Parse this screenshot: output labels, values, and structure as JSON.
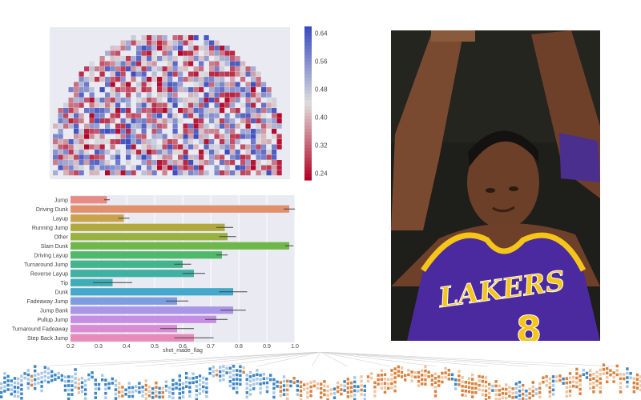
{
  "chart_data": [
    {
      "type": "heatmap",
      "title": "",
      "colorbar": {
        "ticks": [
          "0.64",
          "0.56",
          "0.48",
          "0.40",
          "0.32",
          "0.24"
        ],
        "vmin": 0.22,
        "vmax": 0.66,
        "cmap": "coolwarm",
        "colors": {
          "low": "#b40426",
          "mid": "#dddddd",
          "high": "#3b4cc0"
        }
      },
      "grid": false,
      "background": "#eaeaf2"
    },
    {
      "type": "bar",
      "orientation": "horizontal",
      "categories": [
        "Jump",
        "Driving Dunk",
        "Layup",
        "Running Jump",
        "Other",
        "Slam Dunk",
        "Driving Layup",
        "Turnaround Jump",
        "Reverse Layup",
        "Tip",
        "Dunk",
        "Fadeaway Jump",
        "Jump Bank",
        "Pullup Jump",
        "Turnaround Fadeaway",
        "Step Back Jump"
      ],
      "values": [
        0.33,
        0.98,
        0.39,
        0.75,
        0.76,
        0.98,
        0.74,
        0.6,
        0.64,
        0.35,
        0.78,
        0.58,
        0.78,
        0.72,
        0.58,
        0.64
      ],
      "errors": [
        0.01,
        0.02,
        0.02,
        0.03,
        0.03,
        0.015,
        0.02,
        0.03,
        0.04,
        0.07,
        0.05,
        0.04,
        0.045,
        0.04,
        0.06,
        0.07
      ],
      "colors": [
        "#e88b84",
        "#e0906a",
        "#c9a24c",
        "#b0aa3e",
        "#98b13f",
        "#6fb74a",
        "#4fb86a",
        "#43b48c",
        "#3fb0a2",
        "#3fadb6",
        "#44a8cc",
        "#7e9de0",
        "#a996e6",
        "#c58ee4",
        "#d98bd4",
        "#e88bb8"
      ],
      "xlabel": "shot_made_flag",
      "ylabel": "",
      "xlim": [
        0.2,
        1.0
      ],
      "xticks": [
        "0.2",
        "0.3",
        "0.4",
        "0.5",
        "0.6",
        "0.7",
        "0.8",
        "0.9",
        "1.0"
      ],
      "grid": true,
      "background": "#eaeaf2"
    }
  ],
  "photo": {
    "description_icon": "basketball-player-photo",
    "jersey_text": "LAKERS",
    "jersey_number": "8",
    "colors": {
      "jersey": "#4b2aa0",
      "trim": "#f5c518",
      "background": "#1e1e1a",
      "skin": "#7a4a30",
      "wristband": "#4a2f8f"
    }
  },
  "tree": {
    "icon": "decision-tree-icon",
    "colors": {
      "left": "#3c86c4",
      "right": "#d9833f",
      "light_left": "#a9c8e6",
      "light_right": "#efc6a3"
    }
  }
}
